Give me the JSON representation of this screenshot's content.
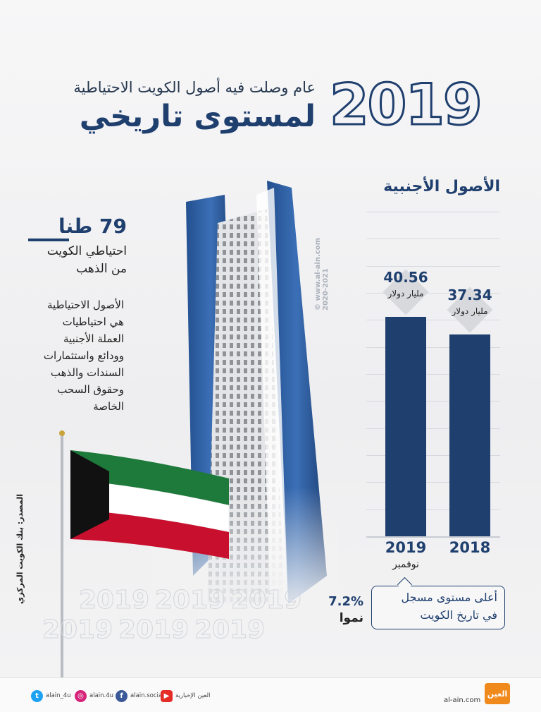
{
  "header": {
    "year": "2019",
    "subtitle": "عام وصلت فيه أصول الكويت الاحتياطية",
    "title": "لمستوى تاريخي"
  },
  "gold": {
    "amount": "79 طنا",
    "label_line1": "احتياطي الكويت",
    "label_line2": "من الذهب"
  },
  "description": [
    "الأصول الاحتياطية",
    "هي احتياطيات",
    "العملة الأجنبية",
    "وودائع واستثمارات",
    "السندات والذهب",
    "وحقوق السحب",
    "الخاصة"
  ],
  "watermark": {
    "site": "www.al-ain.com",
    "years": "2020-2021",
    "copyright": "©"
  },
  "chart_data": {
    "type": "bar",
    "title": "الأصول الأجنبية",
    "categories": [
      "2019",
      "2018"
    ],
    "category_sublabels": [
      "نوفمبر",
      ""
    ],
    "values": [
      40.56,
      37.34
    ],
    "value_labels": [
      "40.56",
      "37.34"
    ],
    "unit": "مليار دولار",
    "ylim": [
      0,
      60
    ],
    "grid": true
  },
  "callout": {
    "line1": "أعلى مستوى مسجل",
    "line2": "في تاريخ الكويت"
  },
  "growth": {
    "value": "7.2%",
    "label": "نموا"
  },
  "ghost_years": [
    "2019",
    "2019",
    "2019",
    "2019",
    "2019",
    "2019"
  ],
  "source": "المصدر: بنك الكويت المركزي",
  "footer": {
    "social": [
      {
        "handle": "alain_4u",
        "icon": "twitter-icon",
        "color": "#1da1f2",
        "glyph": "t"
      },
      {
        "handle": "alain.4u",
        "icon": "instagram-icon",
        "color": "#d6247a",
        "glyph": "◎"
      },
      {
        "handle": "alain.social",
        "icon": "facebook-icon",
        "color": "#3b5998",
        "glyph": "f"
      },
      {
        "handle": "العين الإخبارية",
        "icon": "youtube-icon",
        "color": "#e52d27",
        "glyph": "▶"
      }
    ],
    "site": "al-ain.com",
    "logo_text": "العين"
  },
  "colors": {
    "brand": "#1f3f6e",
    "flag_green": "#1d7a3a",
    "flag_red": "#c8102e",
    "flag_black": "#111111",
    "logo_orange": "#f08a1c"
  }
}
